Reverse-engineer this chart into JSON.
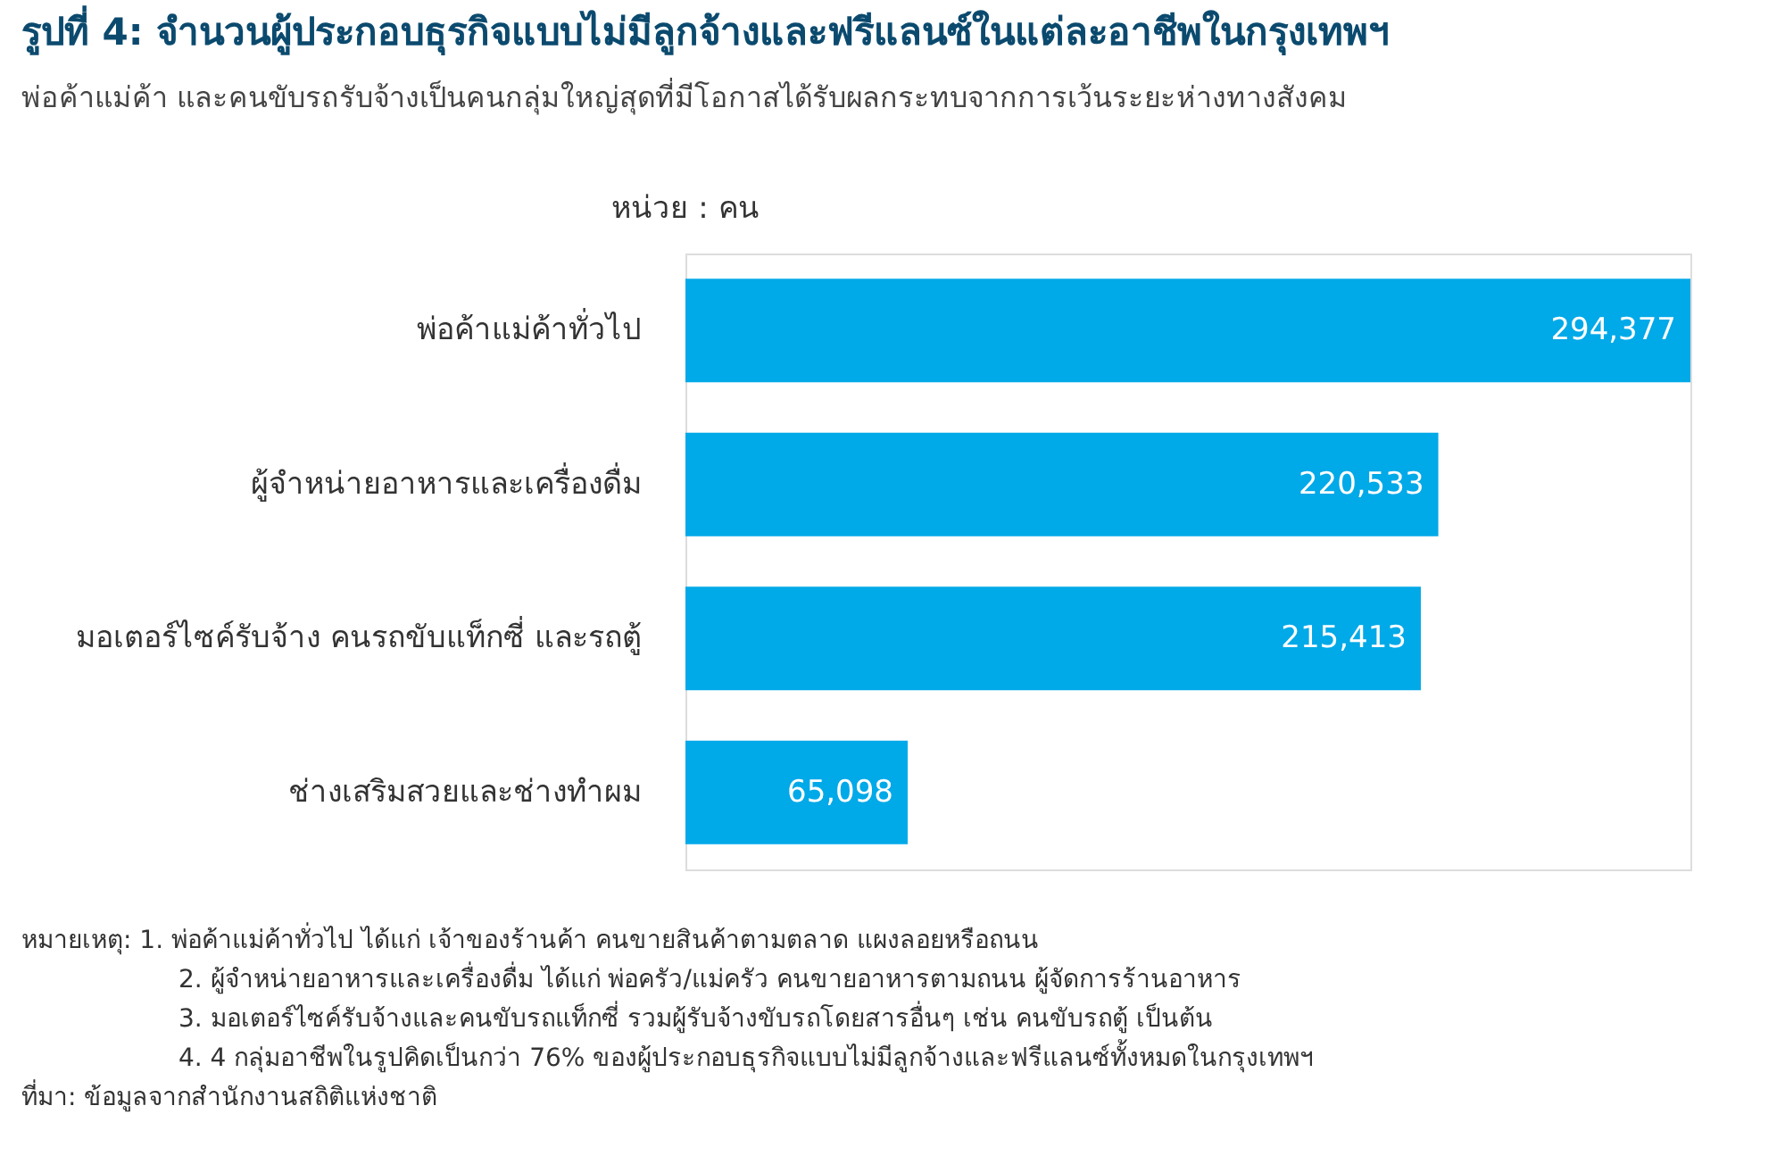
{
  "chart_data": {
    "type": "bar",
    "orientation": "horizontal",
    "title": "รูปที่ 4: จำนวนผู้ประกอบธุรกิจแบบไม่มีลูกจ้างและฟรีแลนซ์ในแต่ละอาชีพในกรุงเทพฯ",
    "subtitle": "พ่อค้าแม่ค้า และคนขับรถรับจ้างเป็นคนกลุ่มใหญ่สุดที่มีโอกาสได้รับผลกระทบจากการเว้นระยะห่างทางสังคม",
    "categories": [
      "พ่อค้าแม่ค้าทั่วไป",
      "ผู้จำหน่ายอาหารและเครื่องดื่ม",
      "มอเตอร์ไซค์รับจ้าง คนรถขับแท็กซี่ และรถตู้",
      "ช่างเสริมสวยและช่างทำผม"
    ],
    "values": [
      294377,
      220533,
      215413,
      65098
    ],
    "color": "#00a9e8",
    "value_labels": [
      "294,377",
      "220,533",
      "215,413",
      "65,098"
    ],
    "annotations": [
      "หน่วย : คน",
      "หมายเหตุ:  1. พ่อค้าแม่ค้าทั่วไป ได้แก่ เจ้าของร้านค้า คนขายสินค้าตามตลาด แผงลอยหรือถนน",
      "2. ผู้จำหน่ายอาหารและเครื่องดื่ม ได้แก่ พ่อครัว/แม่ครัว คนขายอาหารตามถนน ผู้จัดการร้านอาหาร",
      "3. มอเตอร์ไซค์รับจ้างและคนขับรถแท็กซี่ รวมผู้รับจ้างขับรถโดยสารอื่นๆ เช่น คนขับรถตู้ เป็นต้น",
      "4. 4 กลุ่มอาชีพในรูปคิดเป็นกว่า 76% ของผู้ประกอบธุรกิจแบบไม่มีลูกจ้างและฟรีแลนซ์ทั้งหมดในกรุงเทพฯ",
      "ที่มา: ข้อมูลจากสำนักงานสถิติแห่งชาติ"
    ]
  }
}
